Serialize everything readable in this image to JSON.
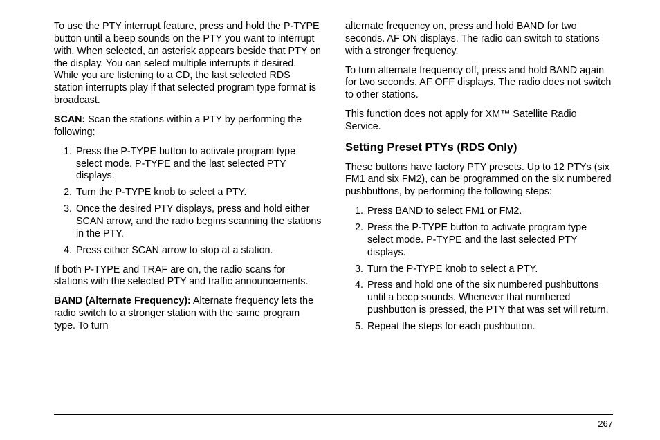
{
  "page_number": "267",
  "left": {
    "p1": "To use the PTY interrupt feature, press and hold the P-TYPE button until a beep sounds on the PTY you want to interrupt with. When selected, an asterisk appears beside that PTY on the display. You can select multiple interrupts if desired. While you are listening to a CD, the last selected RDS station interrupts play if that selected program type format is broadcast.",
    "scan_label": "SCAN:",
    "scan_text": "  Scan the stations within a PTY by performing the following:",
    "scan_steps": [
      "Press the P-TYPE button to activate program type select mode. P-TYPE and the last selected PTY displays.",
      "Turn the P-TYPE knob to select a PTY.",
      "Once the desired PTY displays, press and hold either SCAN arrow, and the radio begins scanning the stations in the PTY.",
      "Press either SCAN arrow to stop at a station."
    ],
    "p2": "If both P-TYPE and TRAF are on, the radio scans for stations with the selected PTY and traffic announcements.",
    "band_label": "BAND (Alternate Frequency):",
    "band_text": "  Alternate frequency lets the radio switch to a stronger station with the same program type. To turn"
  },
  "right": {
    "p1": "alternate frequency on, press and hold BAND for two seconds. AF ON displays. The radio can switch to stations with a stronger frequency.",
    "p2": "To turn alternate frequency off, press and hold BAND again for two seconds. AF OFF displays. The radio does not switch to other stations.",
    "p3": "This function does not apply for XM™ Satellite Radio Service.",
    "heading": "Setting Preset PTYs (RDS Only)",
    "p4": "These buttons have factory PTY presets. Up to 12 PTYs (six FM1 and six FM2), can be programmed on the six numbered pushbuttons, by performing the following steps:",
    "steps": [
      "Press BAND to select FM1 or FM2.",
      "Press the P-TYPE button to activate program type select mode. P-TYPE and the last selected PTY displays.",
      "Turn the P-TYPE knob to select a PTY.",
      "Press and hold one of the six numbered pushbuttons until a beep sounds. Whenever that numbered pushbutton is pressed, the PTY that was set will return.",
      "Repeat the steps for each pushbutton."
    ]
  }
}
